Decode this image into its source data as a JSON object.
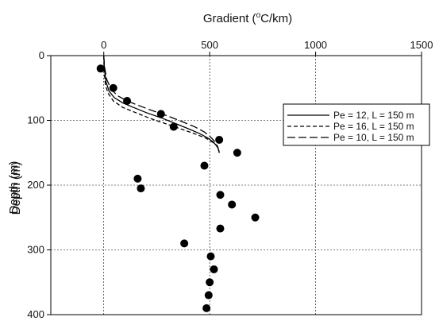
{
  "chart_data": {
    "type": "scatter",
    "title": "",
    "xlabel": "Gradient (",
    "xlabel_sup": "o",
    "xlabel_tail": "C/km)",
    "ylabel_lines": [
      "Depth (m)",
      "Depth (m)"
    ],
    "x_axis_position": "top",
    "y_inverted": true,
    "xlim": [
      -250,
      1500
    ],
    "ylim": [
      0,
      400
    ],
    "x_ticks": [
      0,
      500,
      1000,
      1500
    ],
    "x_tick_labels": [
      "0",
      "500",
      "1000",
      "1500"
    ],
    "y_ticks": [
      0,
      100,
      200,
      300,
      400
    ],
    "y_tick_labels": [
      "0",
      "100",
      "200",
      "300",
      "400"
    ],
    "grid": "dotted",
    "legend_position": "right",
    "series": [
      {
        "name": "Pe = 12, L = 150 m",
        "style": "solid",
        "x": [
          0,
          3,
          10,
          25,
          50,
          90,
          140,
          200,
          270,
          340,
          400,
          450,
          490,
          515,
          530,
          540,
          545
        ],
        "y": [
          0,
          20,
          40,
          55,
          65,
          73,
          80,
          88,
          96,
          105,
          113,
          120,
          127,
          133,
          138,
          143,
          150
        ]
      },
      {
        "name": "Pe = 16, L = 150 m",
        "style": "dashed",
        "x": [
          0,
          2,
          8,
          20,
          45,
          90,
          150,
          220,
          300,
          380,
          440,
          485,
          515,
          532,
          542,
          545
        ],
        "y": [
          0,
          25,
          45,
          58,
          70,
          80,
          88,
          97,
          106,
          115,
          122,
          128,
          134,
          139,
          145,
          150
        ]
      },
      {
        "name": "Pe = 10, L = 150 m",
        "style": "long-dash",
        "x": [
          0,
          4,
          14,
          35,
          65,
          110,
          165,
          230,
          300,
          370,
          430,
          475,
          505,
          525,
          538,
          545
        ],
        "y": [
          0,
          18,
          37,
          52,
          62,
          70,
          77,
          85,
          93,
          102,
          110,
          118,
          126,
          133,
          141,
          150
        ]
      }
    ],
    "points": {
      "x": [
        -15,
        45,
        110,
        270,
        330,
        545,
        475,
        630,
        160,
        175,
        550,
        605,
        715,
        550,
        380,
        505,
        520,
        500,
        495,
        485
      ],
      "y": [
        20,
        50,
        70,
        90,
        110,
        130,
        170,
        150,
        190,
        205,
        215,
        230,
        250,
        267,
        290,
        310,
        330,
        350,
        370,
        390
      ]
    }
  }
}
